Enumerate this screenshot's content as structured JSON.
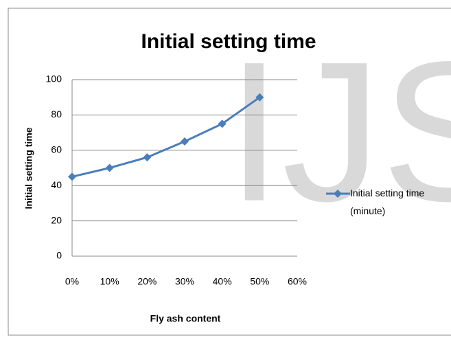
{
  "chart_data": {
    "type": "line",
    "title": "Initial setting time",
    "x_label": "Fly ash content",
    "y_label": "Initial setting time",
    "watermark": "IJS",
    "categories": [
      "0%",
      "10%",
      "20%",
      "30%",
      "40%",
      "50%",
      "60%"
    ],
    "series": [
      {
        "name": "Initial setting time (minute)",
        "color": "#4a7ebb",
        "values": [
          45,
          50,
          56,
          65,
          75,
          90,
          null
        ]
      }
    ],
    "ylim": [
      0,
      100
    ],
    "yticks": [
      0,
      20,
      40,
      60,
      80,
      100
    ],
    "grid": true,
    "legend": "right"
  }
}
